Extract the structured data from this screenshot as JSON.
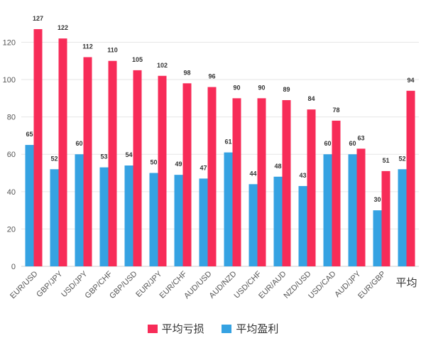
{
  "chart_data": {
    "type": "bar",
    "categories": [
      "EUR/USD",
      "GBP/JPY",
      "USD/JPY",
      "GBP/CHF",
      "GBP/USD",
      "EUR/JPY",
      "EUR/CHF",
      "AUD/USD",
      "AUD/NZD",
      "USD/CHF",
      "EUR/AUD",
      "NZD/USD",
      "USD/CAD",
      "AUD/JPY",
      "EUR/GBP",
      "平均"
    ],
    "series": [
      {
        "name": "平均盈利",
        "color": "#35a2e2",
        "values": [
          65,
          52,
          60,
          53,
          54,
          50,
          49,
          47,
          61,
          44,
          48,
          43,
          60,
          60,
          30,
          52
        ]
      },
      {
        "name": "平均亏损",
        "color": "#f72c58",
        "values": [
          127,
          122,
          112,
          110,
          105,
          102,
          98,
          96,
          90,
          90,
          89,
          84,
          78,
          63,
          51,
          94
        ]
      }
    ],
    "yticks": [
      "0",
      "20",
      "40",
      "60",
      "80",
      "100",
      "120"
    ],
    "ylim": [
      0,
      135
    ],
    "grid": true,
    "legend_position": "bottom-center",
    "legend_order": [
      "平均亏损",
      "平均盈利"
    ]
  }
}
